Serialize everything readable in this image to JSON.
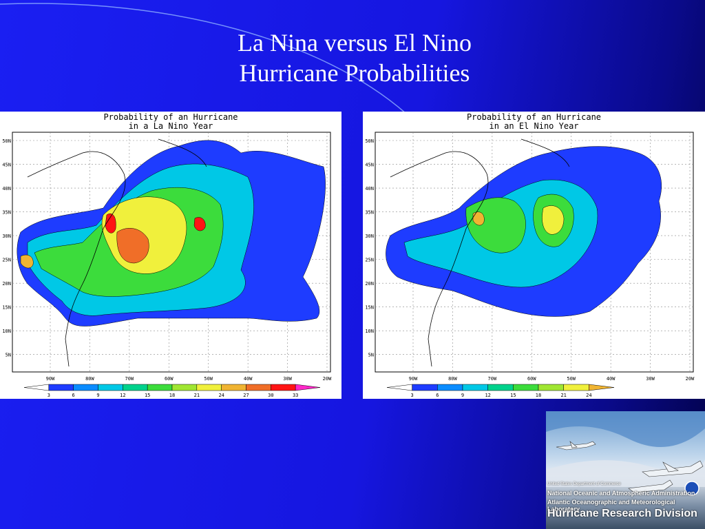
{
  "slide": {
    "title_line1": "La Nina versus El Nino",
    "title_line2": "Hurricane Probabilities"
  },
  "maps": [
    {
      "title_line1": "Probability of an Hurricane",
      "title_line2": "in a La Nino Year",
      "lat_labels": [
        "50N",
        "45N",
        "40N",
        "35N",
        "30N",
        "25N",
        "20N",
        "15N",
        "10N",
        "5N"
      ],
      "lon_labels": [
        "90W",
        "80W",
        "70W",
        "60W",
        "50W",
        "40W",
        "30W",
        "20W"
      ],
      "legend_values": [
        "3",
        "6",
        "9",
        "12",
        "15",
        "18",
        "21",
        "24",
        "27",
        "30",
        "33"
      ],
      "legend_colors": [
        "#ffffff",
        "#1e3cff",
        "#0a8cff",
        "#00c8e6",
        "#00d28c",
        "#3cdc3c",
        "#a0e632",
        "#f0f03c",
        "#f0b432",
        "#f06e28",
        "#ff1414",
        "#ff28c8"
      ]
    },
    {
      "title_line1": "Probability of an Hurricane",
      "title_line2": "in an El Nino Year",
      "lat_labels": [
        "50N",
        "45N",
        "40N",
        "35N",
        "30N",
        "25N",
        "20N",
        "15N",
        "10N",
        "5N"
      ],
      "lon_labels": [
        "90W",
        "80W",
        "70W",
        "60W",
        "50W",
        "40W",
        "30W",
        "20W"
      ],
      "legend_values": [
        "3",
        "6",
        "9",
        "12",
        "15",
        "18",
        "21",
        "24"
      ],
      "legend_colors": [
        "#ffffff",
        "#1e3cff",
        "#0a8cff",
        "#00c8e6",
        "#00d28c",
        "#3cdc3c",
        "#a0e632",
        "#f0f03c",
        "#f0b432"
      ]
    }
  ],
  "logo": {
    "line1": "United States Department of Commerce",
    "line2": "National Oceanic and Atmospheric Administration",
    "line3": "Atlantic Oceanographic and Meteorological Laboratory",
    "line4": "Hurricane Research Division"
  }
}
